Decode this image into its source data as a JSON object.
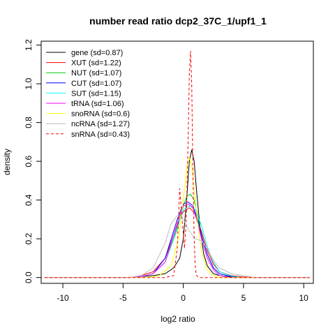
{
  "chart_data": {
    "type": "line",
    "title": "number read ratio dcp2_37C_1/upf1_1",
    "xlabel": "log2 ratio",
    "ylabel": "density",
    "xlim": [
      -11.8,
      10.8
    ],
    "ylim": [
      -0.03,
      1.22
    ],
    "xticks": [
      -10,
      -5,
      0,
      5,
      10
    ],
    "yticks": [
      0.0,
      0.2,
      0.4,
      0.6,
      0.8,
      1.0,
      1.2
    ],
    "xtick_labels": [
      "-10",
      "-5",
      "0",
      "5",
      "10"
    ],
    "ytick_labels": [
      "0.0",
      "0.2",
      "0.4",
      "0.6",
      "0.8",
      "1.0",
      "1.2"
    ],
    "legend_position": "top-left",
    "grid": false,
    "series": [
      {
        "name": "gene (sd=0.87)",
        "color": "#000000",
        "dash": false,
        "x": [
          -11.5,
          -4.5,
          -3.5,
          -2.5,
          -1.5,
          -0.8,
          -0.3,
          0.0,
          0.3,
          0.5,
          0.7,
          0.9,
          1.1,
          1.4,
          1.7,
          2.0,
          2.5,
          3.0,
          4.0,
          5.0,
          6.0,
          10.5
        ],
        "y": [
          0,
          0,
          0.005,
          0.01,
          0.02,
          0.05,
          0.1,
          0.2,
          0.42,
          0.6,
          0.66,
          0.6,
          0.45,
          0.25,
          0.12,
          0.06,
          0.02,
          0.01,
          0.003,
          0.001,
          0,
          0
        ]
      },
      {
        "name": "XUT (sd=1.22)",
        "color": "#ff0000",
        "dash": false,
        "x": [
          -11.5,
          -4.5,
          -3.5,
          -2.5,
          -1.5,
          -0.5,
          0.0,
          0.5,
          1.0,
          1.5,
          2.0,
          2.5,
          3.0,
          4.0,
          5.0,
          6.0,
          10.5
        ],
        "y": [
          0,
          0,
          0.01,
          0.03,
          0.1,
          0.27,
          0.34,
          0.36,
          0.33,
          0.24,
          0.14,
          0.07,
          0.03,
          0.01,
          0.003,
          0,
          0
        ]
      },
      {
        "name": "NUT (sd=1.07)",
        "color": "#00cc00",
        "dash": false,
        "x": [
          -11.5,
          -4.5,
          -3.5,
          -2.5,
          -1.5,
          -0.5,
          0.0,
          0.3,
          0.6,
          0.9,
          1.2,
          1.5,
          2.0,
          2.5,
          3.0,
          4.0,
          5.0,
          10.5
        ],
        "y": [
          0,
          0,
          0.005,
          0.02,
          0.08,
          0.25,
          0.37,
          0.42,
          0.43,
          0.4,
          0.32,
          0.22,
          0.12,
          0.05,
          0.02,
          0.005,
          0,
          0
        ]
      },
      {
        "name": "CUT (sd=1.07)",
        "color": "#0000ff",
        "dash": false,
        "x": [
          -11.5,
          -4.5,
          -3.5,
          -2.5,
          -1.5,
          -0.5,
          0.0,
          0.4,
          0.8,
          1.2,
          1.6,
          2.0,
          2.5,
          3.0,
          4.0,
          5.0,
          10.5
        ],
        "y": [
          0,
          0,
          0.005,
          0.02,
          0.1,
          0.3,
          0.38,
          0.39,
          0.37,
          0.3,
          0.2,
          0.12,
          0.05,
          0.02,
          0.005,
          0,
          0
        ]
      },
      {
        "name": "SUT (sd=1.15)",
        "color": "#00ffff",
        "dash": false,
        "x": [
          -11.5,
          -4.5,
          -3.5,
          -2.5,
          -1.5,
          -0.5,
          0.0,
          0.5,
          1.0,
          1.5,
          2.0,
          2.5,
          3.0,
          4.0,
          5.0,
          10.5
        ],
        "y": [
          0,
          0,
          0.005,
          0.02,
          0.08,
          0.26,
          0.35,
          0.37,
          0.35,
          0.27,
          0.16,
          0.08,
          0.03,
          0.008,
          0,
          0
        ]
      },
      {
        "name": "tRNA (sd=1.06)",
        "color": "#ff00ff",
        "dash": false,
        "x": [
          -11.5,
          -4.5,
          -3.5,
          -2.5,
          -1.5,
          -0.5,
          0.0,
          0.4,
          0.8,
          1.2,
          1.6,
          2.0,
          2.5,
          3.0,
          4.0,
          10.5
        ],
        "y": [
          0,
          0,
          0.005,
          0.02,
          0.08,
          0.28,
          0.37,
          0.38,
          0.36,
          0.28,
          0.18,
          0.1,
          0.04,
          0.01,
          0,
          0
        ]
      },
      {
        "name": "snoRNA (sd=0.6)",
        "color": "#ffff00",
        "dash": false,
        "x": [
          -11.5,
          -3.0,
          -2.0,
          -1.0,
          -0.4,
          0.0,
          0.3,
          0.5,
          0.7,
          0.9,
          1.2,
          1.5,
          2.0,
          2.5,
          3.0,
          10.5
        ],
        "y": [
          0,
          0,
          0.01,
          0.06,
          0.2,
          0.4,
          0.57,
          0.62,
          0.58,
          0.45,
          0.28,
          0.14,
          0.04,
          0.01,
          0,
          0
        ]
      },
      {
        "name": "ncRNA (sd=1.27)",
        "color": "#bebebe",
        "dash": false,
        "x": [
          -11.5,
          -4.5,
          -3.5,
          -2.5,
          -1.5,
          -1.0,
          -0.5,
          0.0,
          0.5,
          1.0,
          1.5,
          2.0,
          2.5,
          3.0,
          4.0,
          5.0,
          6.0,
          10.5
        ],
        "y": [
          0,
          0,
          0.01,
          0.05,
          0.18,
          0.28,
          0.32,
          0.3,
          0.24,
          0.2,
          0.19,
          0.15,
          0.09,
          0.05,
          0.02,
          0.01,
          0,
          0
        ]
      },
      {
        "name": "snRNA (sd=0.43)",
        "color": "#ff0000",
        "dash": true,
        "x": [
          -11.5,
          -1.5,
          -0.8,
          -0.5,
          -0.3,
          -0.1,
          0.1,
          0.25,
          0.4,
          0.5,
          0.6,
          0.7,
          0.8,
          0.9,
          1.0,
          1.1,
          1.3,
          10.5
        ],
        "y": [
          0,
          0,
          0.01,
          0.15,
          0.46,
          0.3,
          0.15,
          0.3,
          0.7,
          1.05,
          1.17,
          1.0,
          0.55,
          0.2,
          0.05,
          0.01,
          0,
          0
        ]
      }
    ]
  }
}
